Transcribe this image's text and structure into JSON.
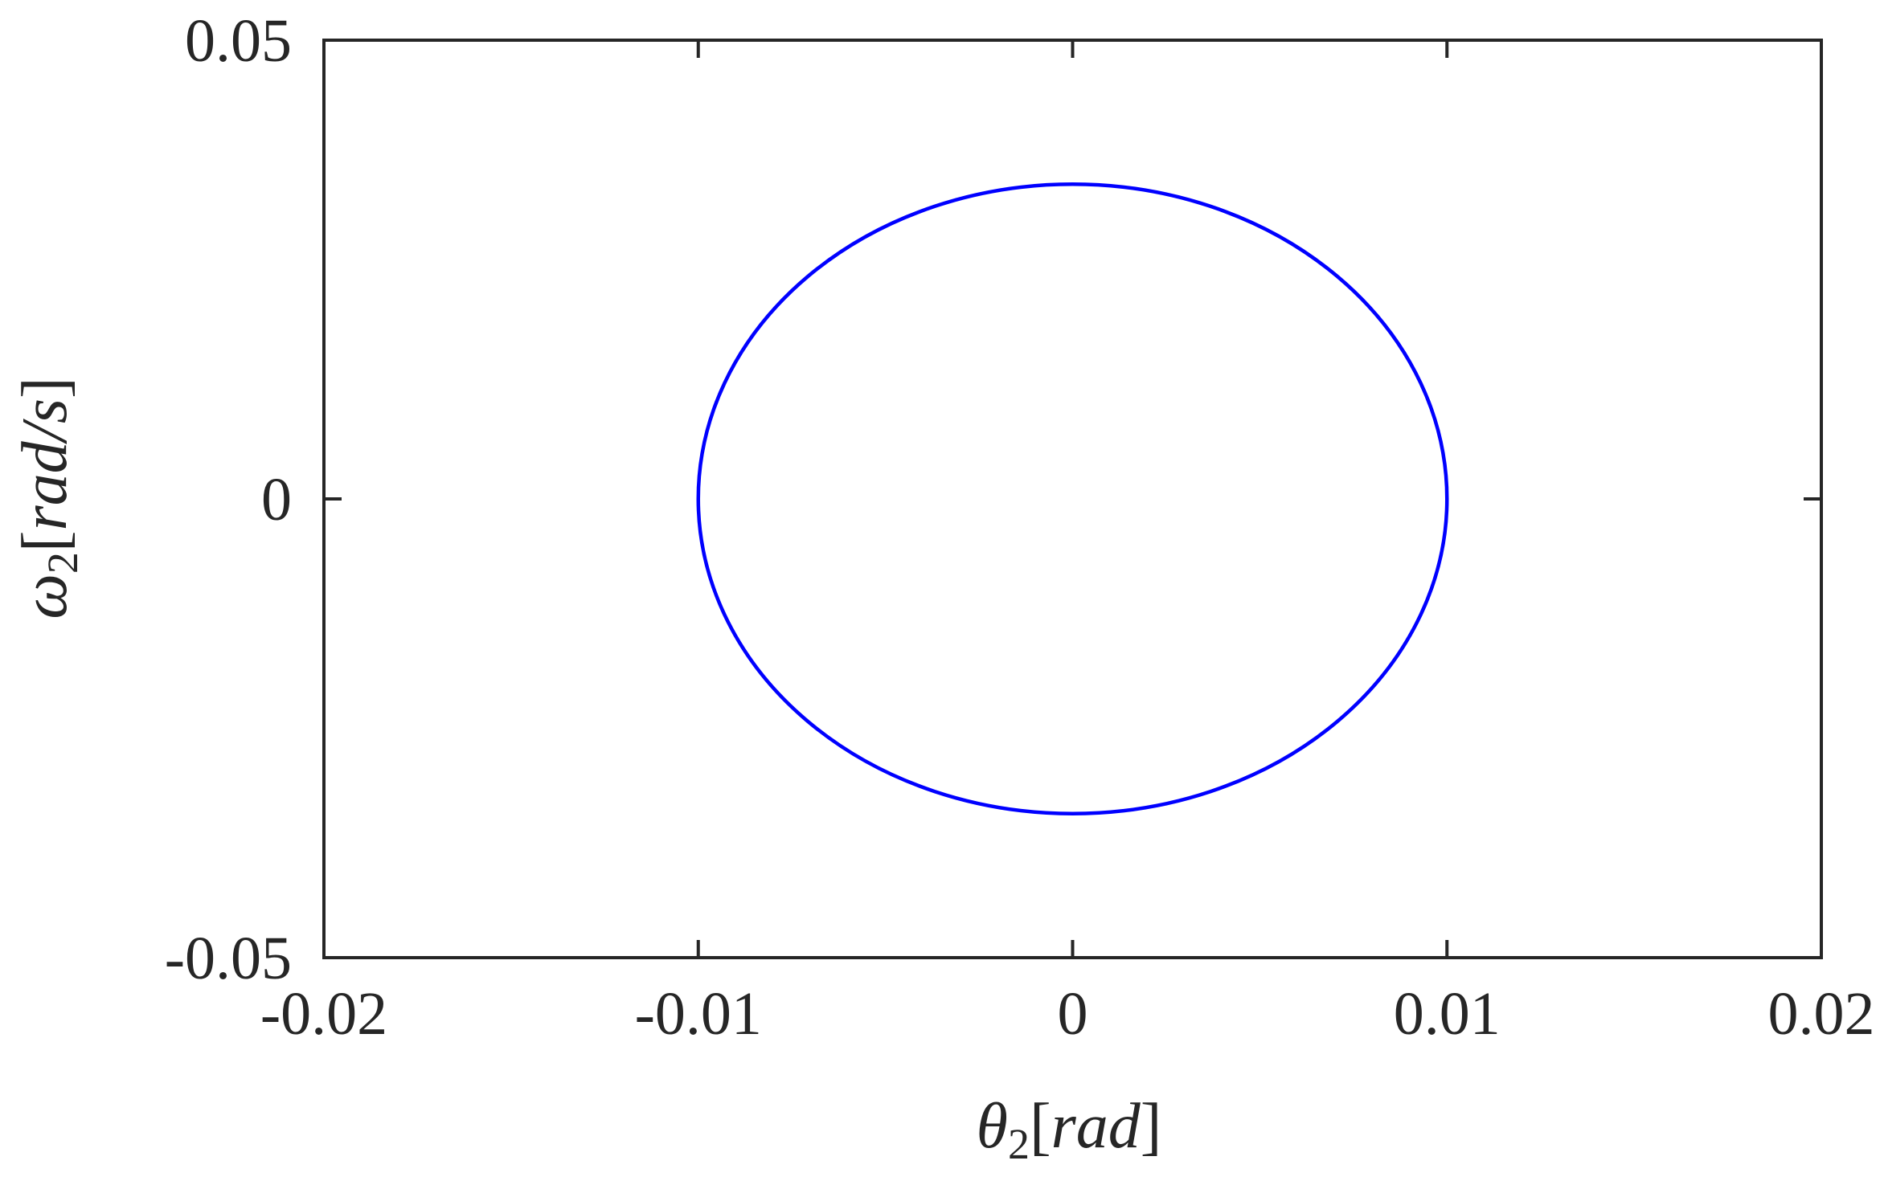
{
  "chart_data": {
    "type": "line",
    "title": "",
    "xlabel": {
      "symbol": "θ",
      "subscript": "2",
      "unit": "rad"
    },
    "ylabel": {
      "symbol": "ω",
      "subscript": "2",
      "unit": "rad/s"
    },
    "xlim": [
      -0.02,
      0.02
    ],
    "ylim": [
      -0.05,
      0.05
    ],
    "xticks": [
      -0.02,
      -0.01,
      0,
      0.01,
      0.02
    ],
    "xtick_labels": [
      "-0.02",
      "-0.01",
      "0",
      "0.01",
      "0.02"
    ],
    "yticks": [
      -0.05,
      0,
      0.05
    ],
    "ytick_labels": [
      "-0.05",
      "0",
      "0.05"
    ],
    "grid": false,
    "series": [
      {
        "color": "#0000ff",
        "shape": "closed ellipse",
        "center": [
          0,
          0
        ],
        "x_amplitude": 0.01,
        "y_amplitude": 0.0343,
        "x": [
          0.01,
          0.0092,
          0.0071,
          0.0038,
          0.0,
          -0.0038,
          -0.0071,
          -0.0092,
          -0.01,
          -0.0092,
          -0.0071,
          -0.0038,
          0.0,
          0.0038,
          0.0071,
          0.0092,
          0.01
        ],
        "y": [
          0.0,
          0.0131,
          0.0243,
          0.0317,
          0.0343,
          0.0317,
          0.0243,
          0.0131,
          0.0,
          -0.0131,
          -0.0243,
          -0.0317,
          -0.0343,
          -0.0317,
          -0.0243,
          -0.0131,
          0.0
        ]
      }
    ]
  }
}
